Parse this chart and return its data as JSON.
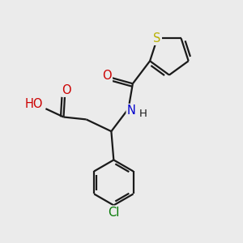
{
  "background_color": "#ebebeb",
  "bond_color": "#1a1a1a",
  "atoms": {
    "S": {
      "color": "#b8b000",
      "fontsize": 10.5
    },
    "O": {
      "color": "#cc0000",
      "fontsize": 10.5
    },
    "N": {
      "color": "#0000cc",
      "fontsize": 10.5
    },
    "Cl": {
      "color": "#007700",
      "fontsize": 10.5
    },
    "H": {
      "color": "#1a1a1a",
      "fontsize": 9.5
    },
    "HO": {
      "color": "#cc0000",
      "fontsize": 10.5
    }
  },
  "figsize": [
    3.0,
    3.0
  ],
  "dpi": 100
}
